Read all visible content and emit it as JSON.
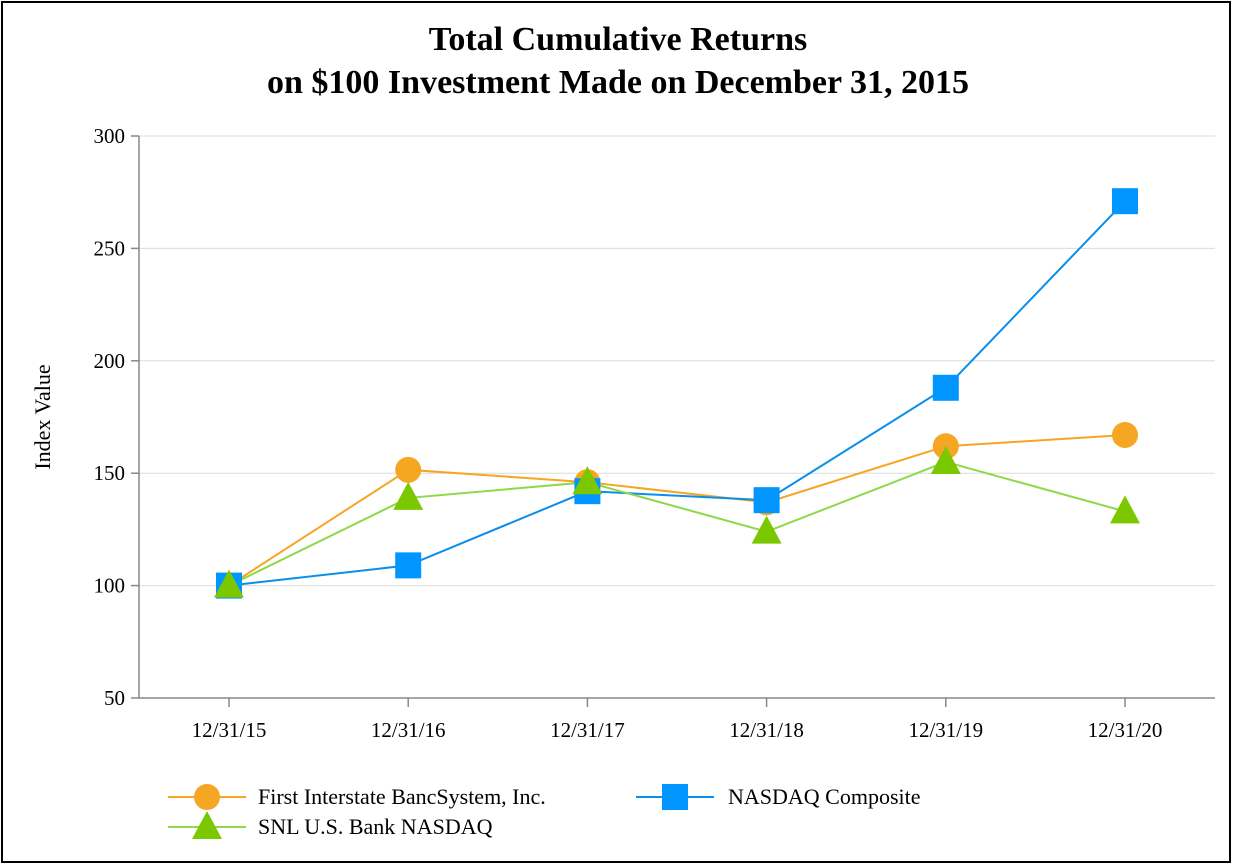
{
  "chart_data": {
    "type": "line",
    "title": "Total Cumulative Returns",
    "subtitle": "on $100 Investment Made on December 31, 2015",
    "xlabel": "",
    "ylabel": "Index Value",
    "ylim": [
      50,
      300
    ],
    "yticks": [
      "50",
      "100",
      "150",
      "200",
      "250",
      "300"
    ],
    "ytick_values": [
      50,
      100,
      150,
      200,
      250,
      300
    ],
    "categories": [
      "12/31/15",
      "12/31/16",
      "12/31/17",
      "12/31/18",
      "12/31/19",
      "12/31/20"
    ],
    "grid": true,
    "legend_position": "bottom",
    "series": [
      {
        "name": "First Interstate BancSystem, Inc.",
        "marker": "circle",
        "color": "#F5A623",
        "values": [
          100,
          151.5,
          146,
          137,
          162,
          167
        ]
      },
      {
        "name": "NASDAQ Composite",
        "marker": "square",
        "color": "#0A8EEB",
        "marker_color": "#0095FF",
        "values": [
          100,
          109,
          142,
          138,
          188,
          271
        ]
      },
      {
        "name": "SNL U.S. Bank NASDAQ",
        "marker": "triangle",
        "color": "#8ED84A",
        "marker_color": "#7CC800",
        "values": [
          100,
          139,
          146,
          124,
          155,
          133
        ]
      }
    ]
  }
}
